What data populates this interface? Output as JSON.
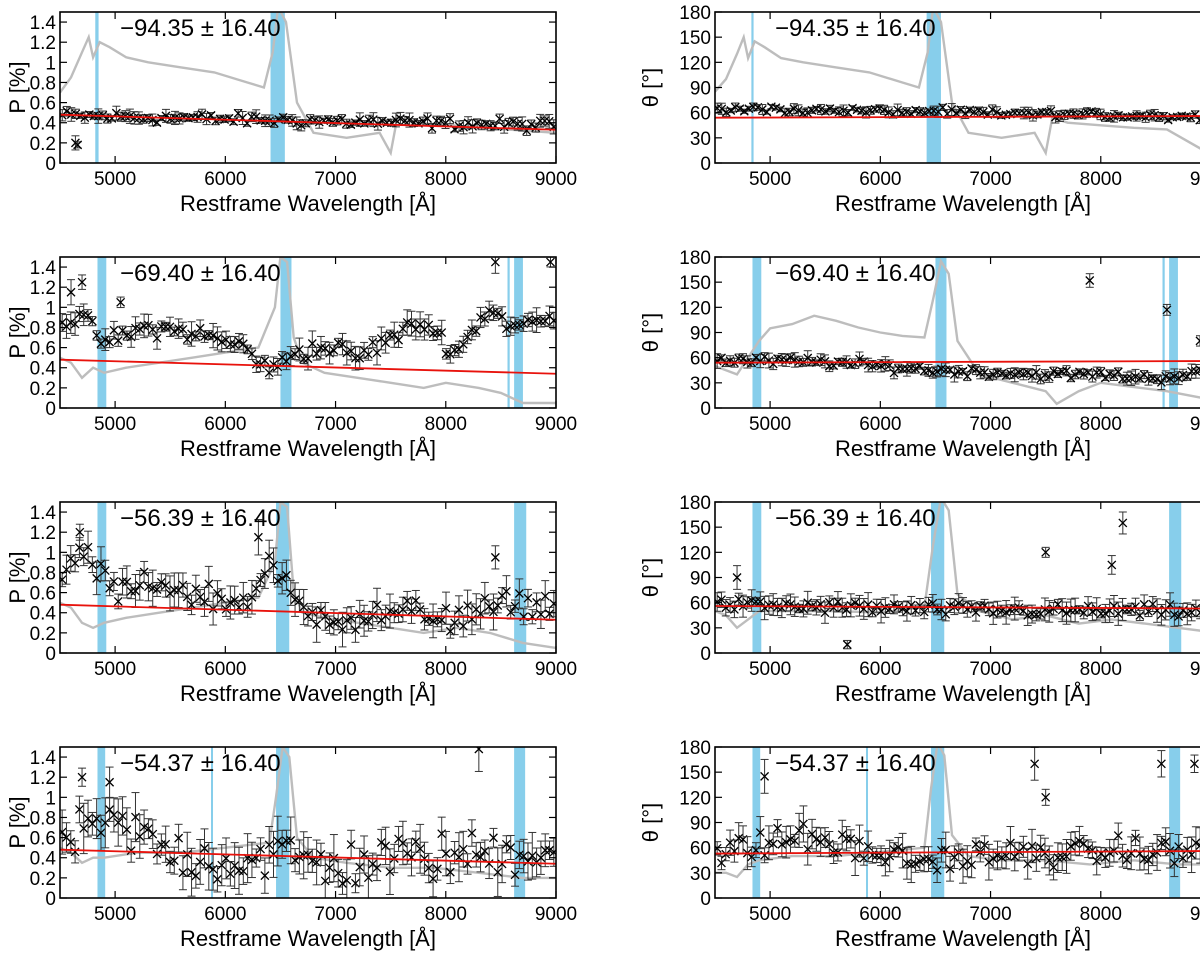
{
  "figure": {
    "colors": {
      "data": "#000000",
      "errorbar": "#333333",
      "fit": "#e8120c",
      "spectrum": "#bdbdbd",
      "band": "#87ceeb"
    },
    "x_axis_label": "Restframe Wavelength [Å]",
    "x_ticks": [
      "5000",
      "6000",
      "7000",
      "8000",
      "9000"
    ],
    "p_ylabel": "P [%]",
    "p_ticks": [
      "0",
      "0.2",
      "0.4",
      "0.6",
      "0.8",
      "1",
      "1.2",
      "1.4"
    ],
    "theta_ylabel": "θ [°]",
    "theta_ticks": [
      "0",
      "30",
      "60",
      "90",
      "120",
      "150",
      "180"
    ]
  },
  "chart_data": [
    {
      "type": "scatter",
      "panel": "P",
      "row": 0,
      "epoch": "−94.35 ± 16.40",
      "xlim": [
        4500,
        9000
      ],
      "ylim": [
        0,
        1.5
      ],
      "fit_line": {
        "x": [
          4500,
          9000
        ],
        "y": [
          0.48,
          0.33
        ]
      },
      "bands": [
        [
          4820,
          4850
        ],
        [
          6410,
          6540
        ]
      ],
      "spectrum_x": [
        4500,
        4600,
        4700,
        4760,
        4800,
        4860,
        4950,
        5100,
        5300,
        5600,
        5900,
        6200,
        6350,
        6430,
        6480,
        6550,
        6650,
        6800,
        7100,
        7400,
        7500,
        7560,
        7700,
        8000,
        8300,
        8600,
        9000
      ],
      "spectrum_y": [
        0.7,
        0.85,
        1.1,
        1.25,
        1.05,
        1.2,
        1.15,
        1.05,
        1.0,
        0.95,
        0.9,
        0.8,
        0.75,
        1.1,
        1.55,
        1.4,
        0.6,
        0.3,
        0.25,
        0.3,
        0.1,
        0.45,
        0.4,
        0.38,
        0.35,
        0.33,
        0.3
      ],
      "series": {
        "level_start": 0.47,
        "level_end": 0.37,
        "scatter": 0.05,
        "err": 0.04,
        "n": 110,
        "outliers": [
          [
            4640,
            0.2
          ],
          [
            4660,
            0.18
          ]
        ]
      }
    },
    {
      "type": "scatter",
      "panel": "theta",
      "row": 0,
      "epoch": "−94.35 ± 16.40",
      "xlim": [
        4500,
        9000
      ],
      "ylim": [
        0,
        180
      ],
      "fit_line": {
        "x": [
          4500,
          9000
        ],
        "y": [
          54,
          56
        ]
      },
      "bands": [
        [
          4830,
          4850
        ],
        [
          6420,
          6550
        ]
      ],
      "spectrum_x": [
        4500,
        4600,
        4700,
        4760,
        4800,
        4860,
        4950,
        5100,
        5300,
        5600,
        5900,
        6200,
        6350,
        6430,
        6480,
        6550,
        6650,
        6800,
        7100,
        7400,
        7500,
        7560,
        7700,
        8000,
        8300,
        8600,
        9000
      ],
      "spectrum_y": [
        85,
        100,
        130,
        150,
        125,
        145,
        138,
        125,
        120,
        114,
        108,
        96,
        90,
        132,
        186,
        168,
        72,
        36,
        30,
        36,
        12,
        54,
        48,
        45,
        42,
        40,
        10
      ],
      "series": {
        "level_start": 65,
        "level_end": 55,
        "scatter": 4,
        "err": 4,
        "n": 110,
        "outliers": []
      }
    },
    {
      "type": "scatter",
      "panel": "P",
      "row": 1,
      "epoch": "−69.40 ± 16.40",
      "xlim": [
        4500,
        9000
      ],
      "ylim": [
        0,
        1.5
      ],
      "fit_line": {
        "x": [
          4500,
          9000
        ],
        "y": [
          0.48,
          0.34
        ]
      },
      "bands": [
        [
          4840,
          4920
        ],
        [
          6500,
          6600
        ],
        [
          8560,
          8580
        ],
        [
          8620,
          8700
        ]
      ],
      "spectrum_x": [
        4500,
        4600,
        4700,
        4800,
        4900,
        5100,
        5400,
        5700,
        6000,
        6300,
        6450,
        6500,
        6560,
        6620,
        6700,
        6900,
        7200,
        7500,
        7800,
        8000,
        8300,
        8500,
        8700,
        9000
      ],
      "spectrum_y": [
        0.5,
        0.45,
        0.3,
        0.4,
        0.35,
        0.4,
        0.45,
        0.5,
        0.55,
        0.6,
        1.0,
        1.5,
        1.45,
        0.7,
        0.45,
        0.35,
        0.3,
        0.25,
        0.2,
        0.25,
        0.2,
        0.15,
        0.05,
        0.05
      ],
      "series": {
        "knots_x": [
          4500,
          4700,
          4900,
          5300,
          5700,
          6200,
          6400,
          6600,
          7000,
          7200,
          7500,
          7800,
          8100,
          8400,
          8600,
          9000
        ],
        "knots_y": [
          0.85,
          0.9,
          0.65,
          0.8,
          0.75,
          0.6,
          0.35,
          0.55,
          0.6,
          0.5,
          0.7,
          0.85,
          0.55,
          1.0,
          0.8,
          0.9
        ],
        "scatter": 0.08,
        "err": 0.07,
        "n": 115,
        "outliers": [
          [
            4600,
            1.15
          ],
          [
            4700,
            1.25
          ],
          [
            5050,
            1.05
          ],
          [
            8450,
            1.45
          ],
          [
            8950,
            1.45
          ]
        ]
      }
    },
    {
      "type": "scatter",
      "panel": "theta",
      "row": 1,
      "epoch": "−69.40 ± 16.40",
      "xlim": [
        4500,
        9000
      ],
      "ylim": [
        0,
        180
      ],
      "fit_line": {
        "x": [
          4500,
          9000
        ],
        "y": [
          54,
          56
        ]
      },
      "bands": [
        [
          4840,
          4920
        ],
        [
          6500,
          6600
        ],
        [
          8560,
          8580
        ],
        [
          8620,
          8700
        ]
      ],
      "spectrum_x": [
        4500,
        4600,
        4700,
        4800,
        4900,
        5000,
        5200,
        5400,
        5600,
        5800,
        6000,
        6200,
        6400,
        6480,
        6550,
        6620,
        6700,
        6900,
        7200,
        7500,
        7600,
        7800,
        8000,
        8300,
        8600,
        9000
      ],
      "spectrum_y": [
        50,
        45,
        40,
        60,
        80,
        95,
        100,
        110,
        104,
        96,
        90,
        86,
        84,
        130,
        175,
        160,
        80,
        40,
        30,
        20,
        5,
        20,
        30,
        25,
        20,
        10
      ],
      "series": {
        "knots_x": [
          4500,
          5500,
          6500,
          7500,
          8000,
          8500,
          9000
        ],
        "knots_y": [
          57,
          55,
          45,
          40,
          40,
          35,
          45
        ],
        "scatter": 5,
        "err": 5,
        "n": 115,
        "outliers": [
          [
            7900,
            152
          ],
          [
            8600,
            117
          ],
          [
            8950,
            90
          ],
          [
            8900,
            80
          ]
        ]
      }
    },
    {
      "type": "scatter",
      "panel": "P",
      "row": 2,
      "epoch": "−56.39 ± 16.40",
      "xlim": [
        4500,
        9000
      ],
      "ylim": [
        0,
        1.5
      ],
      "fit_line": {
        "x": [
          4500,
          9000
        ],
        "y": [
          0.48,
          0.33
        ]
      },
      "bands": [
        [
          4840,
          4920
        ],
        [
          6460,
          6580
        ],
        [
          8620,
          8730
        ]
      ],
      "spectrum_x": [
        4500,
        4600,
        4700,
        4800,
        4900,
        5100,
        5400,
        5700,
        6000,
        6300,
        6450,
        6500,
        6560,
        6620,
        6700,
        6900,
        7200,
        7500,
        7800,
        8100,
        8400,
        8700,
        9000
      ],
      "spectrum_y": [
        0.5,
        0.45,
        0.3,
        0.25,
        0.3,
        0.35,
        0.4,
        0.45,
        0.5,
        0.55,
        0.9,
        1.5,
        1.45,
        0.6,
        0.4,
        0.35,
        0.3,
        0.25,
        0.2,
        0.25,
        0.2,
        0.1,
        0.05
      ],
      "series": {
        "knots_x": [
          4500,
          4700,
          5000,
          5400,
          5800,
          6200,
          6400,
          6700,
          7200,
          7700,
          8200,
          8600,
          9000
        ],
        "knots_y": [
          0.65,
          1.05,
          0.6,
          0.7,
          0.55,
          0.5,
          0.9,
          0.4,
          0.35,
          0.4,
          0.35,
          0.5,
          0.45
        ],
        "scatter": 0.13,
        "err": 0.1,
        "n": 115,
        "outliers": [
          [
            4680,
            1.2
          ],
          [
            6300,
            1.15
          ],
          [
            8450,
            0.95
          ]
        ]
      }
    },
    {
      "type": "scatter",
      "panel": "theta",
      "row": 2,
      "epoch": "−56.39 ± 16.40",
      "xlim": [
        4500,
        9000
      ],
      "ylim": [
        0,
        180
      ],
      "fit_line": {
        "x": [
          4500,
          9000
        ],
        "y": [
          56,
          53
        ]
      },
      "bands": [
        [
          4840,
          4920
        ],
        [
          6460,
          6580
        ],
        [
          8620,
          8730
        ]
      ],
      "spectrum_x": [
        4500,
        4600,
        4700,
        4800,
        4900,
        5200,
        5600,
        6000,
        6400,
        6480,
        6550,
        6620,
        6700,
        6900,
        7200,
        7500,
        7800,
        8100,
        8400,
        8700,
        9000
      ],
      "spectrum_y": [
        50,
        45,
        30,
        40,
        50,
        50,
        50,
        48,
        55,
        130,
        185,
        170,
        70,
        50,
        40,
        45,
        35,
        40,
        35,
        30,
        25
      ],
      "series": {
        "knots_x": [
          4500,
          5500,
          6500,
          7500,
          8500,
          9000
        ],
        "knots_y": [
          58,
          55,
          52,
          50,
          50,
          48
        ],
        "scatter": 7,
        "err": 8,
        "n": 115,
        "outliers": [
          [
            4700,
            90
          ],
          [
            5700,
            10
          ],
          [
            7500,
            120
          ],
          [
            8200,
            155
          ],
          [
            8100,
            105
          ]
        ]
      }
    },
    {
      "type": "scatter",
      "panel": "P",
      "row": 3,
      "epoch": "−54.37 ± 16.40",
      "xlim": [
        4500,
        9000
      ],
      "ylim": [
        0,
        1.5
      ],
      "fit_line": {
        "x": [
          4500,
          9000
        ],
        "y": [
          0.48,
          0.34
        ]
      },
      "bands": [
        [
          4840,
          4910
        ],
        [
          5870,
          5880
        ],
        [
          6460,
          6580
        ],
        [
          8620,
          8720
        ]
      ],
      "spectrum_x": [
        4500,
        4600,
        4700,
        4800,
        4900,
        5200,
        5600,
        6000,
        6400,
        6460,
        6520,
        6580,
        6650,
        6800,
        7100,
        7500,
        7900,
        8300,
        8700,
        9000
      ],
      "spectrum_y": [
        0.5,
        0.45,
        0.35,
        0.4,
        0.4,
        0.45,
        0.45,
        0.5,
        0.55,
        1.0,
        1.5,
        1.4,
        0.6,
        0.4,
        0.35,
        0.3,
        0.3,
        0.25,
        0.2,
        0.2
      ],
      "series": {
        "knots_x": [
          4500,
          5000,
          5500,
          6000,
          6500,
          7000,
          7500,
          8000,
          8500,
          9000
        ],
        "knots_y": [
          0.55,
          0.75,
          0.45,
          0.35,
          0.45,
          0.3,
          0.4,
          0.4,
          0.45,
          0.5
        ],
        "scatter": 0.22,
        "err": 0.14,
        "n": 115,
        "outliers": [
          [
            8300,
            1.48
          ],
          [
            4950,
            1.15
          ],
          [
            4700,
            1.2
          ]
        ]
      }
    },
    {
      "type": "scatter",
      "panel": "theta",
      "row": 3,
      "epoch": "−54.37 ± 16.40",
      "xlim": [
        4500,
        9000
      ],
      "ylim": [
        0,
        180
      ],
      "fit_line": {
        "x": [
          4500,
          9000
        ],
        "y": [
          53,
          56
        ]
      },
      "bands": [
        [
          4840,
          4910
        ],
        [
          5870,
          5880
        ],
        [
          6460,
          6580
        ],
        [
          8620,
          8720
        ]
      ],
      "spectrum_x": [
        4500,
        4600,
        4700,
        4800,
        4900,
        5200,
        5600,
        6000,
        6400,
        6460,
        6520,
        6580,
        6650,
        6800,
        7100,
        7500,
        7900,
        8300,
        8700,
        9000
      ],
      "spectrum_y": [
        30,
        30,
        25,
        40,
        45,
        50,
        50,
        55,
        60,
        130,
        185,
        170,
        75,
        50,
        45,
        45,
        40,
        45,
        40,
        40
      ],
      "series": {
        "knots_x": [
          4500,
          5300,
          5700,
          6300,
          7000,
          8000,
          9000
        ],
        "knots_y": [
          50,
          75,
          60,
          45,
          50,
          55,
          55
        ],
        "scatter": 14,
        "err": 12,
        "n": 115,
        "outliers": [
          [
            4950,
            145
          ],
          [
            7400,
            160
          ],
          [
            7500,
            120
          ],
          [
            8550,
            160
          ],
          [
            8850,
            160
          ]
        ]
      }
    }
  ]
}
